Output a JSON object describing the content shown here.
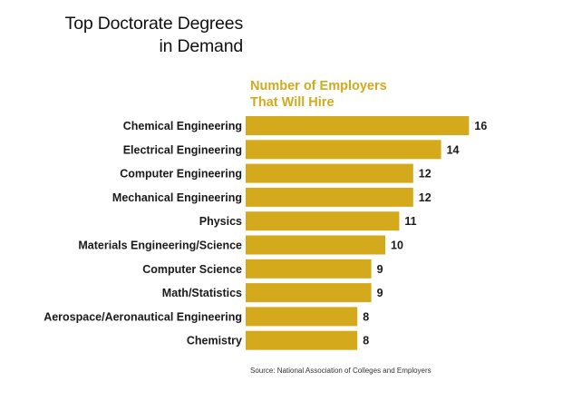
{
  "title_lines": [
    "Top Doctorate Degrees",
    "in Demand"
  ],
  "series_header_lines": [
    "Number of Employers",
    "That Will Hire"
  ],
  "source": "Source: National Association of Colleges and Employers",
  "colors": {
    "bar": "#d4a91b",
    "header": "#d4a91b",
    "text": "#1a1a1a"
  },
  "chart_data": {
    "type": "bar",
    "orientation": "horizontal",
    "title": "Top Doctorate Degrees in Demand",
    "xlabel": "Number of Employers That Will Hire",
    "categories": [
      "Chemical Engineering",
      "Electrical Engineering",
      "Computer Engineering",
      "Mechanical Engineering",
      "Physics",
      "Materials Engineering/Science",
      "Computer Science",
      "Math/Statistics",
      "Aerospace/Aeronautical Engineering",
      "Chemistry"
    ],
    "values": [
      16,
      14,
      12,
      12,
      11,
      10,
      9,
      9,
      8,
      8
    ],
    "grid": false,
    "legend": "none"
  }
}
